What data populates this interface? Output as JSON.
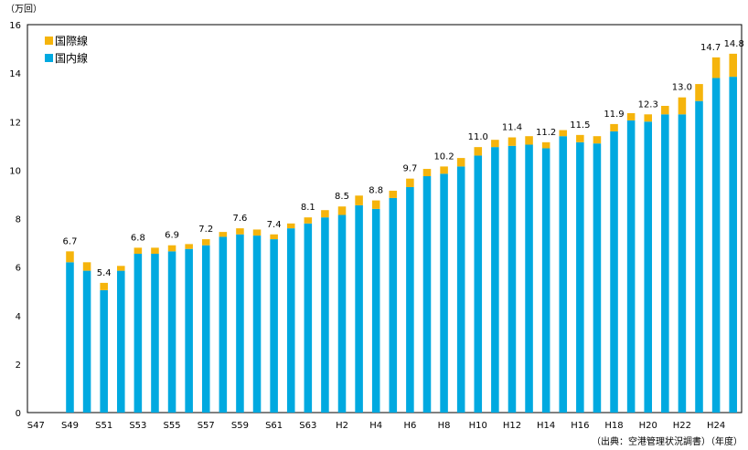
{
  "chart_data": {
    "type": "bar",
    "stacked": true,
    "unit_label": "（万回）",
    "source_label": "（出典：空港管理状況調書）（年度）",
    "categories": [
      "S47",
      "S48",
      "S49",
      "S50",
      "S51",
      "S52",
      "S53",
      "S54",
      "S55",
      "S56",
      "S57",
      "S58",
      "S59",
      "S60",
      "S61",
      "S62",
      "S63",
      "H1",
      "H2",
      "H3",
      "H4",
      "H5",
      "H6",
      "H7",
      "H8",
      "H9",
      "H10",
      "H11",
      "H12",
      "H13",
      "H14",
      "H15",
      "H16",
      "H17",
      "H18",
      "H19",
      "H20",
      "H21",
      "H22",
      "H23",
      "H24",
      "H25"
    ],
    "xticks": [
      "S47",
      "S49",
      "S51",
      "S53",
      "S55",
      "S57",
      "S59",
      "S61",
      "S63",
      "H2",
      "H4",
      "H6",
      "H8",
      "H10",
      "H12",
      "H14",
      "H16",
      "H18",
      "H20",
      "H22",
      "H24"
    ],
    "series": [
      {
        "name": "国内線",
        "color": "#00A9E0",
        "values": [
          null,
          null,
          6.2,
          5.85,
          5.05,
          5.85,
          6.55,
          6.55,
          6.65,
          6.75,
          6.9,
          7.25,
          7.35,
          7.3,
          7.15,
          7.6,
          7.8,
          8.05,
          8.15,
          8.55,
          8.4,
          8.85,
          9.3,
          9.75,
          9.85,
          10.15,
          10.6,
          10.95,
          11.0,
          11.05,
          10.9,
          11.4,
          11.15,
          11.1,
          11.6,
          12.05,
          12.0,
          12.3,
          12.3,
          12.85,
          13.8,
          13.85
        ]
      },
      {
        "name": "国際線",
        "color": "#F5B40C",
        "values": [
          null,
          null,
          0.45,
          0.35,
          0.3,
          0.2,
          0.25,
          0.25,
          0.25,
          0.2,
          0.25,
          0.2,
          0.25,
          0.25,
          0.2,
          0.2,
          0.25,
          0.3,
          0.35,
          0.4,
          0.35,
          0.3,
          0.35,
          0.3,
          0.3,
          0.35,
          0.35,
          0.3,
          0.35,
          0.35,
          0.25,
          0.25,
          0.3,
          0.3,
          0.3,
          0.3,
          0.3,
          0.35,
          0.7,
          0.7,
          0.85,
          0.95
        ]
      }
    ],
    "data_labels": [
      {
        "category": "S49",
        "text": "6.7"
      },
      {
        "category": "S51",
        "text": "5.4"
      },
      {
        "category": "S53",
        "text": "6.8"
      },
      {
        "category": "S55",
        "text": "6.9"
      },
      {
        "category": "S57",
        "text": "7.2"
      },
      {
        "category": "S59",
        "text": "7.6"
      },
      {
        "category": "S61",
        "text": "7.4"
      },
      {
        "category": "S63",
        "text": "8.1"
      },
      {
        "category": "H2",
        "text": "8.5"
      },
      {
        "category": "H4",
        "text": "8.8"
      },
      {
        "category": "H6",
        "text": "9.7"
      },
      {
        "category": "H8",
        "text": "10.2"
      },
      {
        "category": "H10",
        "text": "11.0"
      },
      {
        "category": "H12",
        "text": "11.4"
      },
      {
        "category": "H14",
        "text": "11.2"
      },
      {
        "category": "H16",
        "text": "11.5"
      },
      {
        "category": "H18",
        "text": "11.9"
      },
      {
        "category": "H20",
        "text": "12.3"
      },
      {
        "category": "H22",
        "text": "13.0"
      },
      {
        "category": "H24",
        "text": "14.7"
      },
      {
        "category": "H25",
        "text": "14.8"
      }
    ],
    "ylim": [
      0,
      16
    ],
    "yticks": [
      0,
      2,
      4,
      6,
      8,
      10,
      12,
      14,
      16
    ],
    "legend": {
      "position": "top-left",
      "order": [
        "国際線",
        "国内線"
      ]
    }
  }
}
